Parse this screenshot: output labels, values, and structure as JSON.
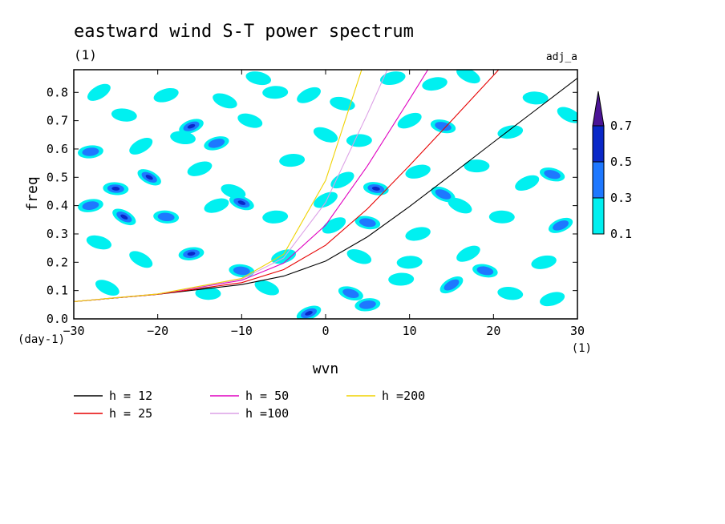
{
  "chart_data": {
    "type": "heatmap",
    "title": "eastward wind S-T power spectrum",
    "subtitle_left": "(1)",
    "subtitle_right": "adj_a",
    "xlabel": "wvn",
    "ylabel": "freq",
    "x_unit": "(1)",
    "y_unit": "(day-1)",
    "xlim": [
      -30,
      30
    ],
    "ylim": [
      0,
      0.88
    ],
    "xticks": [
      -30,
      -20,
      -10,
      0,
      10,
      20,
      30
    ],
    "xtick_labels": [
      "−30",
      "−20",
      "−10",
      "0",
      "10",
      "20",
      "30"
    ],
    "yticks": [
      0.0,
      0.1,
      0.2,
      0.3,
      0.4,
      0.5,
      0.6,
      0.7,
      0.8
    ],
    "ytick_labels": [
      "0.0",
      "0.1",
      "0.2",
      "0.3",
      "0.4",
      "0.5",
      "0.6",
      "0.7",
      "0.8"
    ],
    "contour_levels": [
      0.1,
      0.3,
      0.5,
      0.7
    ],
    "contour_level_labels": [
      "0.1",
      "0.3",
      "0.5",
      "0.7"
    ],
    "contour_colors": [
      "#00f0f0",
      "#1e78ff",
      "#0a28c8",
      "#4b1496"
    ],
    "colorbar_placement": "right",
    "blobs": [
      {
        "x": -27,
        "y": 0.8,
        "level": 1
      },
      {
        "x": -24,
        "y": 0.72,
        "level": 1
      },
      {
        "x": -19,
        "y": 0.79,
        "level": 1
      },
      {
        "x": -12,
        "y": 0.77,
        "level": 1
      },
      {
        "x": -6,
        "y": 0.8,
        "level": 1
      },
      {
        "x": -2,
        "y": 0.79,
        "level": 1
      },
      {
        "x": 2,
        "y": 0.76,
        "level": 1
      },
      {
        "x": 13,
        "y": 0.83,
        "level": 1
      },
      {
        "x": 17,
        "y": 0.86,
        "level": 1
      },
      {
        "x": 25,
        "y": 0.78,
        "level": 1
      },
      {
        "x": -16,
        "y": 0.68,
        "level": 3
      },
      {
        "x": -9,
        "y": 0.7,
        "level": 1
      },
      {
        "x": -28,
        "y": 0.59,
        "level": 2
      },
      {
        "x": -22,
        "y": 0.61,
        "level": 1
      },
      {
        "x": -17,
        "y": 0.64,
        "level": 1
      },
      {
        "x": -13,
        "y": 0.62,
        "level": 2
      },
      {
        "x": 0,
        "y": 0.65,
        "level": 1
      },
      {
        "x": 4,
        "y": 0.63,
        "level": 1
      },
      {
        "x": 10,
        "y": 0.7,
        "level": 1
      },
      {
        "x": 14,
        "y": 0.68,
        "level": 2
      },
      {
        "x": 22,
        "y": 0.66,
        "level": 1
      },
      {
        "x": -21,
        "y": 0.5,
        "level": 3
      },
      {
        "x": -25,
        "y": 0.46,
        "level": 3
      },
      {
        "x": -15,
        "y": 0.53,
        "level": 1
      },
      {
        "x": -11,
        "y": 0.45,
        "level": 1
      },
      {
        "x": -4,
        "y": 0.56,
        "level": 1
      },
      {
        "x": 2,
        "y": 0.49,
        "level": 1
      },
      {
        "x": 6,
        "y": 0.46,
        "level": 3
      },
      {
        "x": 11,
        "y": 0.52,
        "level": 1
      },
      {
        "x": 14,
        "y": 0.44,
        "level": 2
      },
      {
        "x": 18,
        "y": 0.54,
        "level": 1
      },
      {
        "x": 24,
        "y": 0.48,
        "level": 1
      },
      {
        "x": 27,
        "y": 0.51,
        "level": 2
      },
      {
        "x": -28,
        "y": 0.4,
        "level": 2
      },
      {
        "x": -24,
        "y": 0.36,
        "level": 3
      },
      {
        "x": -19,
        "y": 0.36,
        "level": 2
      },
      {
        "x": -13,
        "y": 0.4,
        "level": 1
      },
      {
        "x": -10,
        "y": 0.41,
        "level": 3
      },
      {
        "x": -6,
        "y": 0.36,
        "level": 1
      },
      {
        "x": 1,
        "y": 0.33,
        "level": 1
      },
      {
        "x": 5,
        "y": 0.34,
        "level": 2
      },
      {
        "x": 11,
        "y": 0.3,
        "level": 1
      },
      {
        "x": 16,
        "y": 0.4,
        "level": 1
      },
      {
        "x": 21,
        "y": 0.36,
        "level": 1
      },
      {
        "x": 28,
        "y": 0.33,
        "level": 2
      },
      {
        "x": -27,
        "y": 0.27,
        "level": 1
      },
      {
        "x": -16,
        "y": 0.23,
        "level": 3
      },
      {
        "x": -22,
        "y": 0.21,
        "level": 1
      },
      {
        "x": -10,
        "y": 0.17,
        "level": 2
      },
      {
        "x": -5,
        "y": 0.22,
        "level": 1
      },
      {
        "x": 4,
        "y": 0.22,
        "level": 1
      },
      {
        "x": 10,
        "y": 0.2,
        "level": 1
      },
      {
        "x": 17,
        "y": 0.23,
        "level": 1
      },
      {
        "x": 19,
        "y": 0.17,
        "level": 2
      },
      {
        "x": 26,
        "y": 0.2,
        "level": 1
      },
      {
        "x": -26,
        "y": 0.11,
        "level": 1
      },
      {
        "x": -14,
        "y": 0.09,
        "level": 1
      },
      {
        "x": -2,
        "y": 0.02,
        "level": 3
      },
      {
        "x": 3,
        "y": 0.09,
        "level": 2
      },
      {
        "x": 5,
        "y": 0.05,
        "level": 2
      },
      {
        "x": 15,
        "y": 0.12,
        "level": 2
      },
      {
        "x": 22,
        "y": 0.09,
        "level": 1
      },
      {
        "x": 27,
        "y": 0.07,
        "level": 1
      },
      {
        "x": -7,
        "y": 0.11,
        "level": 1
      },
      {
        "x": 9,
        "y": 0.14,
        "level": 1
      },
      {
        "x": 0,
        "y": 0.42,
        "level": 1
      },
      {
        "x": -8,
        "y": 0.85,
        "level": 1
      },
      {
        "x": 8,
        "y": 0.85,
        "level": 1
      },
      {
        "x": 29,
        "y": 0.72,
        "level": 1
      }
    ],
    "series": [
      {
        "name": "h = 12",
        "color": "#000000",
        "h": 12,
        "x": [
          -30,
          -20,
          -10,
          -5,
          0,
          5,
          10,
          15,
          20,
          25,
          30
        ],
        "y": [
          0.061,
          0.087,
          0.121,
          0.151,
          0.204,
          0.29,
          0.397,
          0.51,
          0.624,
          0.737,
          0.85
        ]
      },
      {
        "name": "h = 25",
        "color": "#e60000",
        "h": 25,
        "x": [
          -30,
          -20,
          -10,
          -5,
          0,
          5,
          10,
          15,
          20,
          24
        ],
        "y": [
          0.061,
          0.087,
          0.128,
          0.174,
          0.26,
          0.389,
          0.542,
          0.7,
          0.86,
          0.988
        ]
      },
      {
        "name": "h = 50",
        "color": "#e000c0",
        "h": 50,
        "x": [
          -30,
          -20,
          -10,
          -5,
          0,
          5,
          10,
          15,
          16
        ],
        "y": [
          0.061,
          0.088,
          0.136,
          0.197,
          0.331,
          0.541,
          0.776,
          1.014,
          1.062
        ]
      },
      {
        "name": "h =100",
        "color": "#dca0e6",
        "h": 100,
        "x": [
          -30,
          -20,
          -10,
          -5,
          0,
          5,
          10,
          11
        ],
        "y": [
          0.061,
          0.088,
          0.14,
          0.215,
          0.411,
          0.725,
          1.055,
          1.121
        ]
      },
      {
        "name": "h =200",
        "color": "#f0d200",
        "h": 200,
        "x": [
          -30,
          -20,
          -10,
          -5,
          0,
          5,
          8
        ],
        "y": [
          0.061,
          0.088,
          0.143,
          0.228,
          0.489,
          0.944,
          1.219
        ]
      }
    ]
  }
}
